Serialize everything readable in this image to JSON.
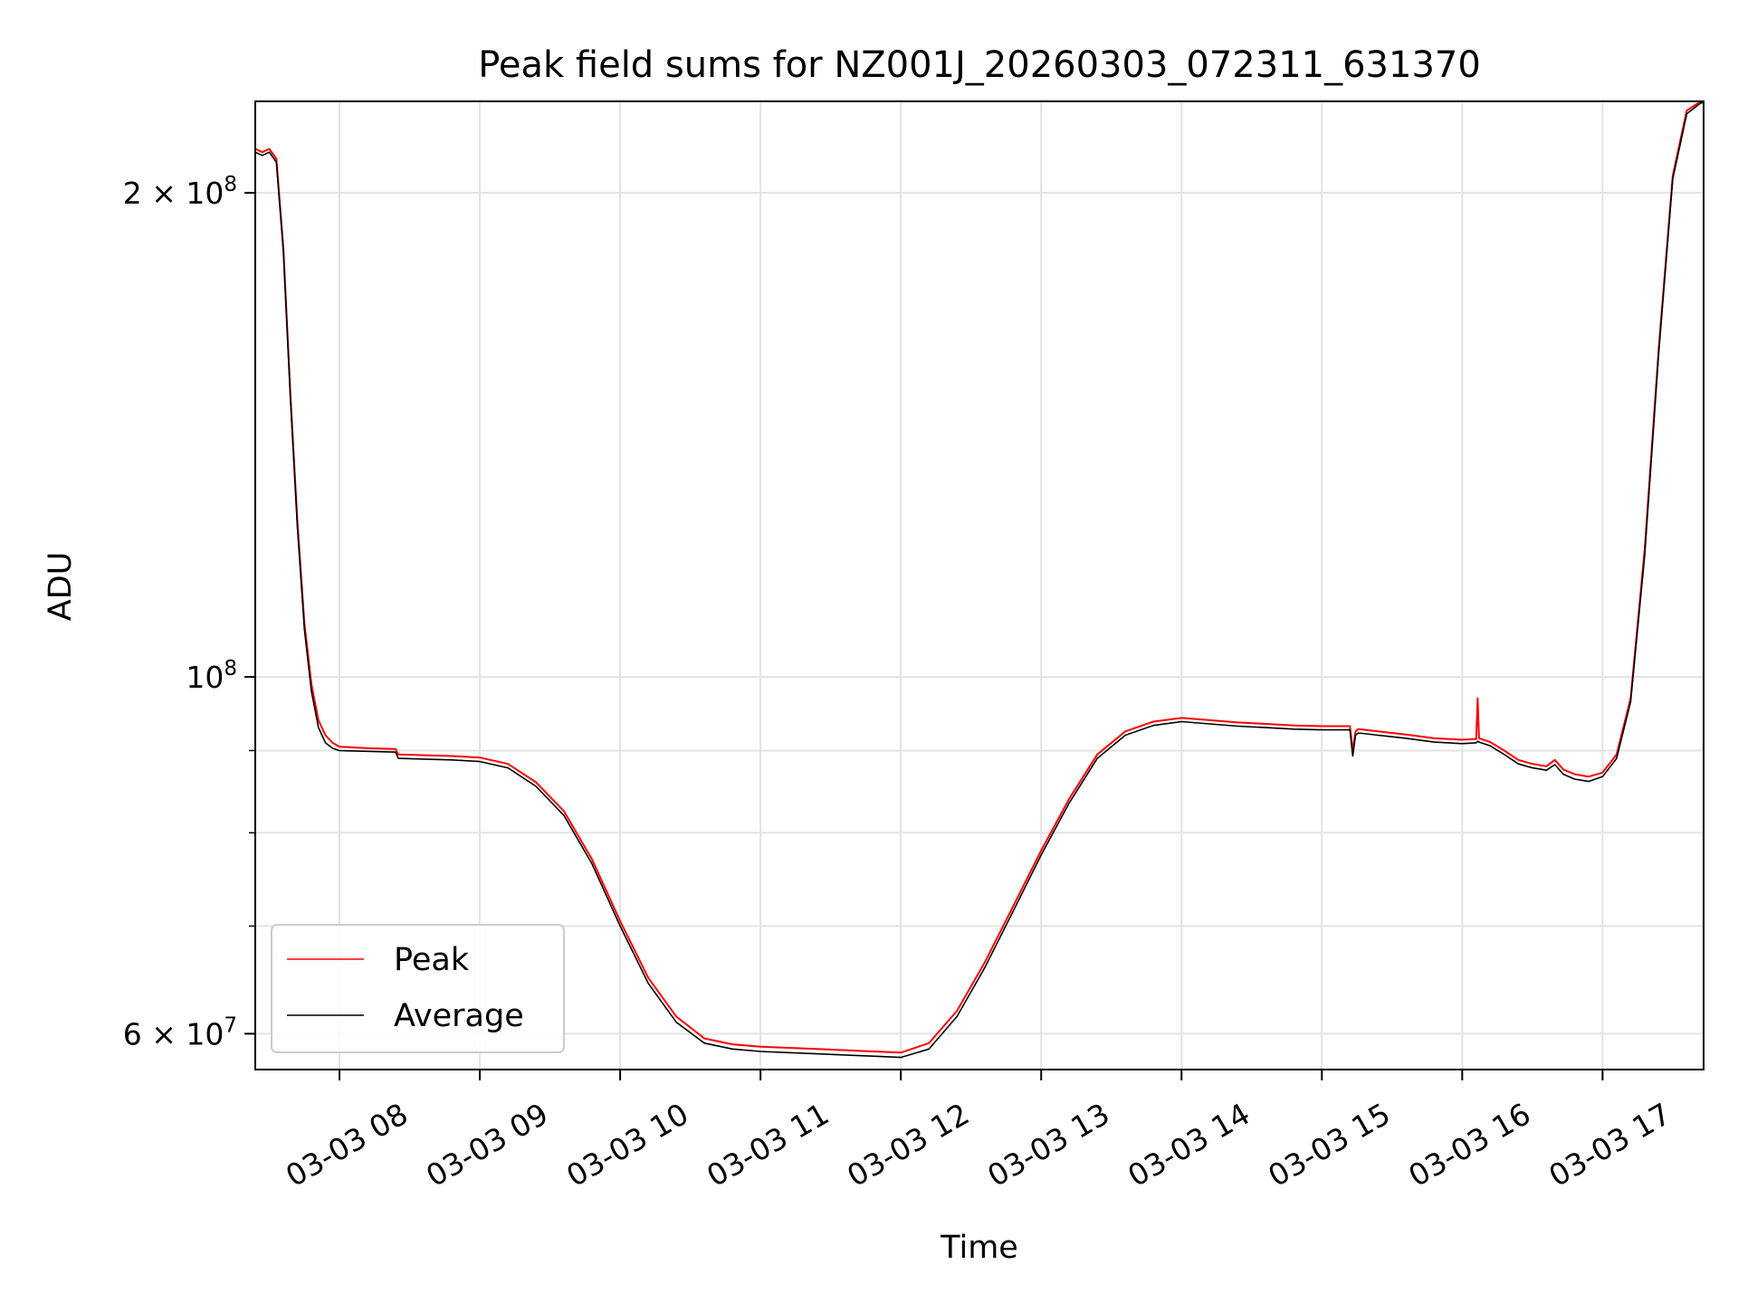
{
  "chart_data": {
    "type": "line",
    "title": "Peak field sums for NZ001J_20260303_072311_631370",
    "xlabel": "Time",
    "ylabel": "ADU",
    "yscale": "log",
    "xlim": [
      7.4,
      17.72
    ],
    "ylim": [
      57000000,
      228000000
    ],
    "grid": true,
    "legend_position": "lower-left",
    "x_ticks": [
      {
        "value": 8,
        "label": "03-03 08"
      },
      {
        "value": 9,
        "label": "03-03 09"
      },
      {
        "value": 10,
        "label": "03-03 10"
      },
      {
        "value": 11,
        "label": "03-03 11"
      },
      {
        "value": 12,
        "label": "03-03 12"
      },
      {
        "value": 13,
        "label": "03-03 13"
      },
      {
        "value": 14,
        "label": "03-03 14"
      },
      {
        "value": 15,
        "label": "03-03 15"
      },
      {
        "value": 16,
        "label": "03-03 16"
      },
      {
        "value": 17,
        "label": "03-03 17"
      }
    ],
    "y_ticks": [
      {
        "value": 60000000,
        "label_base": "6 × 10",
        "label_exp": "7"
      },
      {
        "value": 100000000,
        "label_base": "10",
        "label_exp": "8"
      },
      {
        "value": 200000000,
        "label_base": "2 × 10",
        "label_exp": "8"
      }
    ],
    "y_minor_gridlines": [
      70000000,
      80000000,
      90000000
    ],
    "series": [
      {
        "name": "Peak",
        "color": "#ff0000",
        "x": [
          7.4,
          7.45,
          7.5,
          7.55,
          7.6,
          7.65,
          7.7,
          7.75,
          7.8,
          7.85,
          7.9,
          7.95,
          8.0,
          8.2,
          8.4,
          8.42,
          8.6,
          8.8,
          9.0,
          9.2,
          9.4,
          9.6,
          9.8,
          10.0,
          10.2,
          10.4,
          10.6,
          10.8,
          11.0,
          11.2,
          11.4,
          11.6,
          11.8,
          12.0,
          12.2,
          12.4,
          12.6,
          12.8,
          13.0,
          13.2,
          13.4,
          13.6,
          13.8,
          14.0,
          14.2,
          14.4,
          14.6,
          14.8,
          15.0,
          15.2,
          15.22,
          15.24,
          15.26,
          15.4,
          15.6,
          15.8,
          16.0,
          16.1,
          16.11,
          16.12,
          16.2,
          16.3,
          16.4,
          16.5,
          16.6,
          16.66,
          16.72,
          16.8,
          16.9,
          17.0,
          17.1,
          17.2,
          17.3,
          17.4,
          17.5,
          17.6,
          17.7,
          17.72
        ],
        "values": [
          213000000,
          212000000,
          213000000,
          210000000,
          185000000,
          150000000,
          125000000,
          108000000,
          99000000,
          94000000,
          92000000,
          91000000,
          90500000,
          90300000,
          90200000,
          89500000,
          89400000,
          89300000,
          89100000,
          88300000,
          86000000,
          82500000,
          77000000,
          70500000,
          65000000,
          61500000,
          59600000,
          59100000,
          58900000,
          58800000,
          58700000,
          58600000,
          58500000,
          58400000,
          59200000,
          62000000,
          66500000,
          72000000,
          78000000,
          84000000,
          89500000,
          92500000,
          93800000,
          94300000,
          94000000,
          93700000,
          93500000,
          93300000,
          93200000,
          93200000,
          90000000,
          92500000,
          92800000,
          92500000,
          92100000,
          91600000,
          91400000,
          91500000,
          97000000,
          91600000,
          91100000,
          90000000,
          88800000,
          88300000,
          88000000,
          88800000,
          87600000,
          87000000,
          86700000,
          87200000,
          89500000,
          97000000,
          120000000,
          160000000,
          205000000,
          225000000,
          228000000,
          228000000
        ]
      },
      {
        "name": "Average",
        "color": "#000000",
        "x": [
          7.4,
          7.45,
          7.5,
          7.55,
          7.6,
          7.65,
          7.7,
          7.75,
          7.8,
          7.85,
          7.9,
          7.95,
          8.0,
          8.2,
          8.4,
          8.42,
          8.6,
          8.8,
          9.0,
          9.2,
          9.4,
          9.6,
          9.8,
          10.0,
          10.2,
          10.4,
          10.6,
          10.8,
          11.0,
          11.2,
          11.4,
          11.6,
          11.8,
          12.0,
          12.2,
          12.4,
          12.6,
          12.8,
          13.0,
          13.2,
          13.4,
          13.6,
          13.8,
          14.0,
          14.2,
          14.4,
          14.6,
          14.8,
          15.0,
          15.2,
          15.22,
          15.24,
          15.26,
          15.4,
          15.6,
          15.8,
          16.0,
          16.1,
          16.11,
          16.12,
          16.2,
          16.3,
          16.4,
          16.5,
          16.6,
          16.66,
          16.72,
          16.8,
          16.9,
          17.0,
          17.1,
          17.2,
          17.3,
          17.4,
          17.5,
          17.6,
          17.7,
          17.72
        ],
        "values": [
          212000000,
          211000000,
          212000000,
          209000000,
          184000000,
          149000000,
          124000000,
          107000000,
          98000000,
          93000000,
          91000000,
          90300000,
          90000000,
          89900000,
          89800000,
          89000000,
          88900000,
          88800000,
          88600000,
          87800000,
          85500000,
          82000000,
          76500000,
          70000000,
          64500000,
          61000000,
          59200000,
          58700000,
          58500000,
          58400000,
          58300000,
          58200000,
          58100000,
          58000000,
          58700000,
          61500000,
          66000000,
          71500000,
          77500000,
          83500000,
          89000000,
          92000000,
          93300000,
          93800000,
          93500000,
          93200000,
          93000000,
          92800000,
          92700000,
          92700000,
          89300000,
          92000000,
          92300000,
          92000000,
          91600000,
          91100000,
          90900000,
          91000000,
          91200000,
          91100000,
          90600000,
          89500000,
          88300000,
          87800000,
          87500000,
          88200000,
          87000000,
          86400000,
          86100000,
          86700000,
          89000000,
          96500000,
          119000000,
          159000000,
          204000000,
          224000000,
          227500000,
          227500000
        ]
      }
    ]
  }
}
